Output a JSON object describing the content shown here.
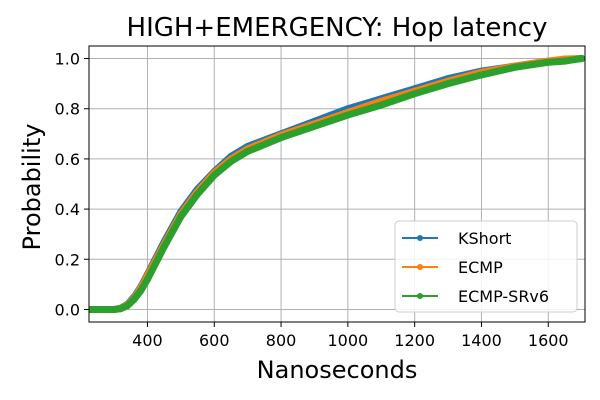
{
  "chart_data": {
    "type": "line",
    "title": "HIGH+EMERGENCY: Hop latency",
    "xlabel": "Nanoseconds",
    "ylabel": "Probability",
    "xlim": [
      225,
      1710
    ],
    "ylim": [
      -0.05,
      1.05
    ],
    "x_ticks": [
      400,
      600,
      800,
      1000,
      1200,
      1400,
      1600
    ],
    "y_ticks": [
      0.0,
      0.2,
      0.4,
      0.6,
      0.8,
      1.0
    ],
    "x_tick_labels": [
      "400",
      "600",
      "800",
      "1000",
      "1200",
      "1400",
      "1600"
    ],
    "y_tick_labels": [
      "0.0",
      "0.2",
      "0.4",
      "0.6",
      "0.8",
      "1.0"
    ],
    "grid": true,
    "legend_position": "bottom-right",
    "series": [
      {
        "name": "KShort",
        "color": "#1f77b4",
        "x": [
          225,
          300,
          320,
          340,
          360,
          380,
          400,
          450,
          500,
          550,
          600,
          650,
          700,
          800,
          900,
          1000,
          1100,
          1200,
          1300,
          1400,
          1500,
          1600,
          1650,
          1700
        ],
        "y": [
          0.0,
          0.0,
          0.005,
          0.02,
          0.05,
          0.09,
          0.14,
          0.27,
          0.39,
          0.48,
          0.55,
          0.61,
          0.65,
          0.7,
          0.75,
          0.8,
          0.84,
          0.88,
          0.92,
          0.95,
          0.97,
          0.99,
          0.995,
          1.0
        ]
      },
      {
        "name": "ECMP",
        "color": "#ff7f0e",
        "x": [
          225,
          300,
          320,
          340,
          360,
          380,
          400,
          450,
          500,
          550,
          600,
          650,
          700,
          800,
          900,
          1000,
          1100,
          1200,
          1300,
          1400,
          1500,
          1600,
          1650,
          1700
        ],
        "y": [
          0.0,
          0.0,
          0.004,
          0.018,
          0.045,
          0.085,
          0.135,
          0.26,
          0.38,
          0.47,
          0.545,
          0.6,
          0.64,
          0.695,
          0.74,
          0.785,
          0.83,
          0.87,
          0.91,
          0.945,
          0.97,
          0.99,
          0.998,
          1.0
        ]
      },
      {
        "name": "ECMP-SRv6",
        "color": "#2ca02c",
        "x": [
          225,
          300,
          320,
          340,
          360,
          380,
          400,
          450,
          500,
          550,
          600,
          650,
          700,
          800,
          900,
          1000,
          1100,
          1200,
          1300,
          1400,
          1500,
          1600,
          1650,
          1700
        ],
        "y": [
          0.0,
          0.0,
          0.003,
          0.015,
          0.04,
          0.075,
          0.12,
          0.25,
          0.37,
          0.46,
          0.535,
          0.59,
          0.63,
          0.685,
          0.73,
          0.775,
          0.815,
          0.86,
          0.9,
          0.935,
          0.965,
          0.985,
          0.99,
          1.0
        ]
      }
    ]
  }
}
